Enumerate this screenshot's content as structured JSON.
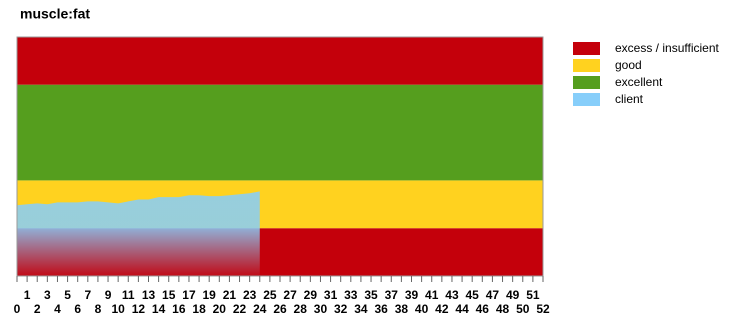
{
  "chart_data": {
    "type": "area",
    "title": "muscle:fat",
    "xlim": [
      0,
      52
    ],
    "xticks": [
      0,
      1,
      2,
      3,
      4,
      5,
      6,
      7,
      8,
      9,
      10,
      11,
      12,
      13,
      14,
      15,
      16,
      17,
      18,
      19,
      20,
      21,
      22,
      23,
      24,
      25,
      26,
      27,
      28,
      29,
      30,
      31,
      32,
      33,
      34,
      35,
      36,
      37,
      38,
      39,
      40,
      41,
      42,
      43,
      44,
      45,
      46,
      47,
      48,
      49,
      50,
      51,
      52
    ],
    "ylim": [
      0,
      5
    ],
    "series": [
      {
        "name": "excess / insufficient",
        "color": "#c4000b",
        "ranges": [
          [
            0,
            1
          ],
          [
            4,
            5
          ]
        ]
      },
      {
        "name": "good",
        "color": "#ffd21f",
        "ranges": [
          [
            1,
            2
          ]
        ]
      },
      {
        "name": "excellent",
        "color": "#559e1e",
        "ranges": [
          [
            2,
            4
          ]
        ]
      },
      {
        "name": "client",
        "color": "#87cefa",
        "x": [
          0,
          1,
          2,
          3,
          4,
          5,
          6,
          7,
          8,
          9,
          10,
          11,
          12,
          13,
          14,
          15,
          16,
          17,
          18,
          19,
          20,
          21,
          22,
          23,
          24
        ],
        "values": [
          1.48,
          1.5,
          1.52,
          1.5,
          1.54,
          1.54,
          1.54,
          1.56,
          1.56,
          1.54,
          1.52,
          1.56,
          1.6,
          1.6,
          1.65,
          1.65,
          1.65,
          1.69,
          1.69,
          1.67,
          1.67,
          1.69,
          1.71,
          1.73,
          1.77
        ]
      }
    ]
  }
}
